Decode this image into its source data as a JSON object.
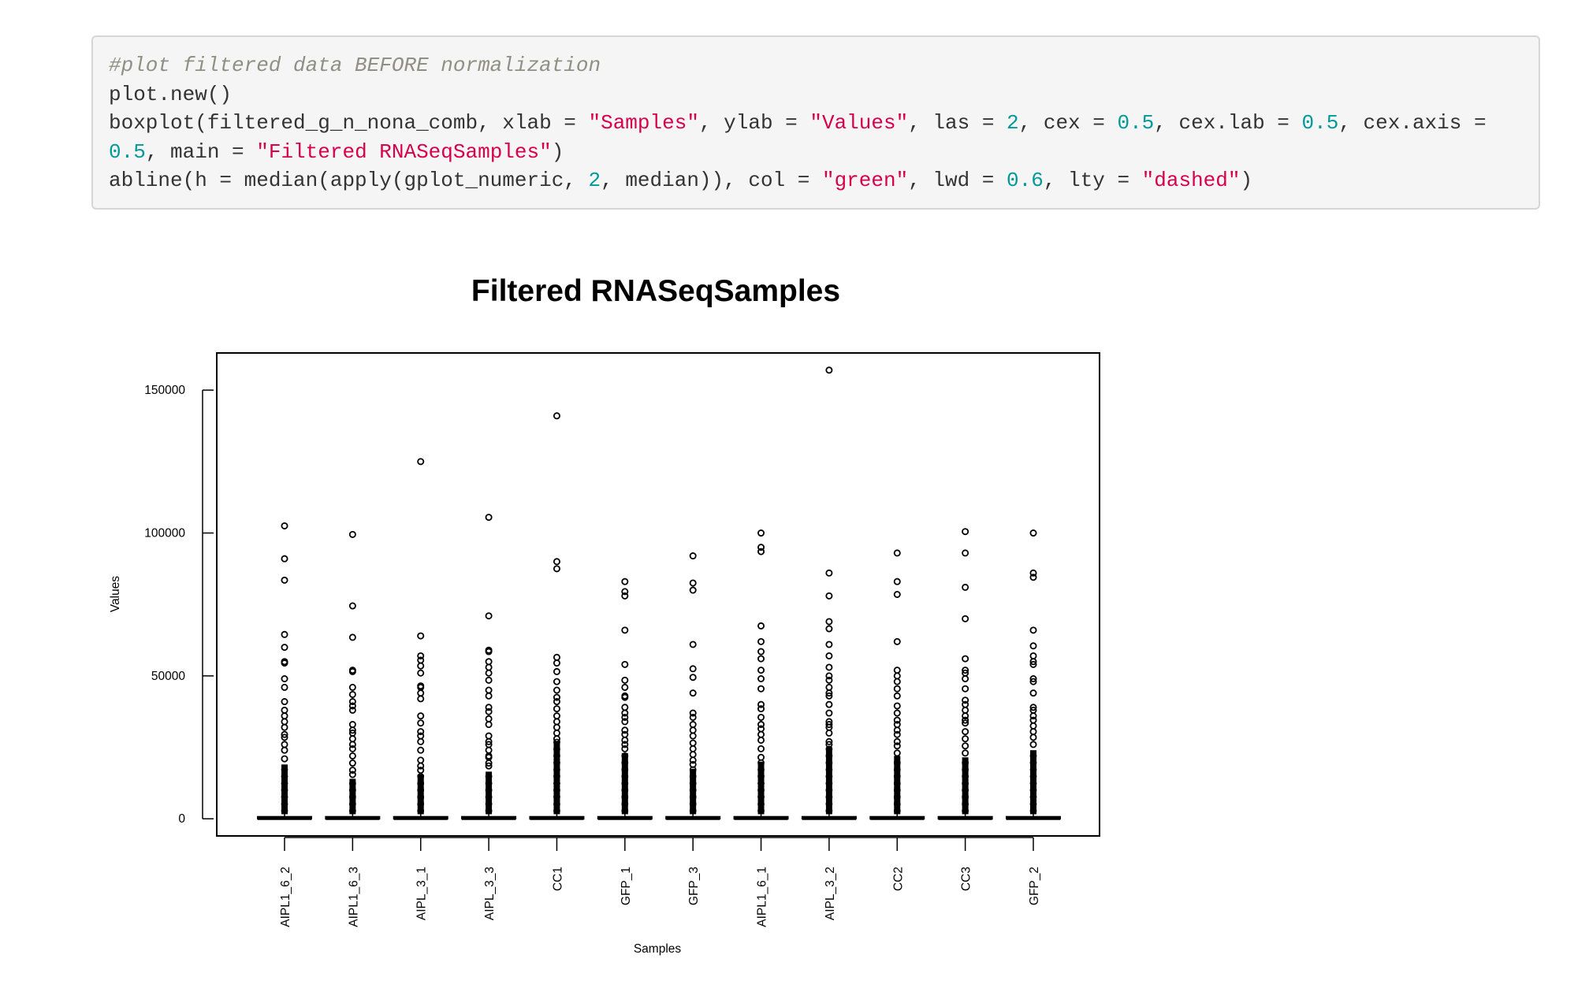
{
  "code": {
    "lines": [
      [
        {
          "t": "comment",
          "v": "#plot filtered data BEFORE normalization"
        }
      ],
      [
        {
          "t": "plain",
          "v": "plot.new()"
        }
      ],
      [
        {
          "t": "plain",
          "v": "boxplot(filtered_g_n_nona_comb, xlab = "
        },
        {
          "t": "string",
          "v": "\"Samples\""
        },
        {
          "t": "plain",
          "v": ", ylab = "
        },
        {
          "t": "string",
          "v": "\"Values\""
        },
        {
          "t": "plain",
          "v": ", las = "
        },
        {
          "t": "number",
          "v": "2"
        },
        {
          "t": "plain",
          "v": ", cex = "
        },
        {
          "t": "number",
          "v": "0.5"
        },
        {
          "t": "plain",
          "v": ", cex.lab = "
        },
        {
          "t": "number",
          "v": "0.5"
        },
        {
          "t": "plain",
          "v": ", cex.axis ="
        }
      ],
      [
        {
          "t": "number",
          "v": "0.5"
        },
        {
          "t": "plain",
          "v": ", main = "
        },
        {
          "t": "string",
          "v": "\"Filtered RNASeqSamples\""
        },
        {
          "t": "plain",
          "v": ")"
        }
      ],
      [
        {
          "t": "plain",
          "v": "abline(h = median(apply(gplot_numeric, "
        },
        {
          "t": "number",
          "v": "2"
        },
        {
          "t": "plain",
          "v": ", median)), col = "
        },
        {
          "t": "string",
          "v": "\"green\""
        },
        {
          "t": "plain",
          "v": ", lwd = "
        },
        {
          "t": "number",
          "v": "0.6"
        },
        {
          "t": "plain",
          "v": ", lty = "
        },
        {
          "t": "string",
          "v": "\"dashed\""
        },
        {
          "t": "plain",
          "v": ")"
        }
      ]
    ]
  },
  "chart_data": {
    "type": "boxplot",
    "title": "Filtered RNASeqSamples",
    "xlabel": "Samples",
    "ylabel": "Values",
    "ylim": [
      -6000,
      163000
    ],
    "yticks": [
      0,
      50000,
      100000,
      150000
    ],
    "ytick_labels": [
      "0",
      "50000",
      "100000",
      "150000"
    ],
    "grid": false,
    "categories": [
      "AIPL1_6_2",
      "AIPL1_6_3",
      "AIPL_3_1",
      "AIPL_3_3",
      "CC1",
      "GFP_1",
      "GFP_3",
      "AIPL1_6_1",
      "AIPL_3_2",
      "CC2",
      "CC3",
      "GFP_2"
    ],
    "series": [
      {
        "box": [
          0,
          20,
          150,
          700,
          1600
        ],
        "dense_outliers_max": 19000,
        "outliers": [
          102500,
          91000,
          83500,
          64500,
          60000,
          55000,
          54500,
          49000,
          46000,
          41000,
          38000,
          36000,
          34000,
          32000,
          29500,
          28500,
          26000,
          24000,
          21000
        ]
      },
      {
        "box": [
          0,
          20,
          150,
          700,
          1600
        ],
        "dense_outliers_max": 14000,
        "outliers": [
          99500,
          74500,
          63500,
          52000,
          51500,
          46000,
          43500,
          41000,
          39500,
          38000,
          33000,
          31000,
          30000,
          28000,
          26000,
          24500,
          22000,
          19500,
          17000,
          15500
        ]
      },
      {
        "box": [
          0,
          20,
          150,
          700,
          1600
        ],
        "dense_outliers_max": 15500,
        "outliers": [
          125000,
          64000,
          57000,
          55500,
          53500,
          51000,
          46500,
          46000,
          44000,
          42000,
          36000,
          33500,
          30500,
          29000,
          27000,
          24000,
          20500,
          18500,
          17000
        ]
      },
      {
        "box": [
          0,
          20,
          150,
          700,
          1600
        ],
        "dense_outliers_max": 16500,
        "outliers": [
          105500,
          71000,
          59000,
          58500,
          55000,
          53000,
          51000,
          48500,
          45000,
          43000,
          39000,
          37500,
          35000,
          33000,
          29000,
          27000,
          26000,
          24000,
          22000,
          21500,
          19500,
          18500
        ]
      },
      {
        "box": [
          0,
          20,
          150,
          700,
          1600
        ],
        "dense_outliers_max": 27000,
        "outliers": [
          141000,
          90000,
          87500,
          56500,
          54500,
          51500,
          48000,
          45000,
          42500,
          41000,
          38500,
          36000,
          34000,
          32000,
          30000,
          28000
        ]
      },
      {
        "box": [
          0,
          20,
          150,
          700,
          1600
        ],
        "dense_outliers_max": 23000,
        "outliers": [
          83000,
          79500,
          78000,
          66000,
          54000,
          48500,
          46000,
          43000,
          42500,
          39000,
          37000,
          35500,
          34000,
          31000,
          29500,
          27500,
          26000,
          24500
        ]
      },
      {
        "box": [
          0,
          20,
          150,
          700,
          1600
        ],
        "dense_outliers_max": 17500,
        "outliers": [
          92000,
          82500,
          80000,
          61000,
          52500,
          49500,
          44000,
          37000,
          35500,
          33000,
          31000,
          29000,
          26500,
          24500,
          22500,
          20500,
          19000
        ]
      },
      {
        "box": [
          0,
          20,
          150,
          700,
          1600
        ],
        "dense_outliers_max": 20000,
        "outliers": [
          100000,
          95000,
          93500,
          67500,
          62000,
          58500,
          56000,
          52000,
          49000,
          45500,
          40000,
          38500,
          35500,
          33000,
          31500,
          29500,
          27500,
          24500,
          21500
        ]
      },
      {
        "box": [
          0,
          20,
          150,
          700,
          1600
        ],
        "dense_outliers_max": 25000,
        "outliers": [
          157000,
          86000,
          78000,
          69000,
          66500,
          61000,
          57000,
          53000,
          50000,
          48500,
          46000,
          44000,
          43000,
          40000,
          37000,
          34000,
          33000,
          32000,
          30000,
          27000,
          26000
        ]
      },
      {
        "box": [
          0,
          20,
          150,
          700,
          1600
        ],
        "dense_outliers_max": 22000,
        "outliers": [
          93000,
          83000,
          78500,
          62000,
          52000,
          50000,
          48000,
          45500,
          43000,
          39500,
          37000,
          34500,
          33000,
          31000,
          29500,
          27000,
          25500,
          23000
        ]
      },
      {
        "box": [
          0,
          20,
          150,
          700,
          1600
        ],
        "dense_outliers_max": 21500,
        "outliers": [
          100500,
          93000,
          81000,
          70000,
          56000,
          52000,
          51000,
          49000,
          45500,
          41500,
          40000,
          38000,
          36000,
          34500,
          33500,
          30500,
          28000,
          25500,
          23000
        ]
      },
      {
        "box": [
          0,
          20,
          150,
          700,
          1600
        ],
        "dense_outliers_max": 24000,
        "outliers": [
          100000,
          86000,
          84500,
          66000,
          60500,
          57000,
          55000,
          54000,
          49000,
          48000,
          44000,
          39000,
          38000,
          36000,
          34500,
          32500,
          30500,
          28500,
          26000
        ]
      }
    ]
  }
}
